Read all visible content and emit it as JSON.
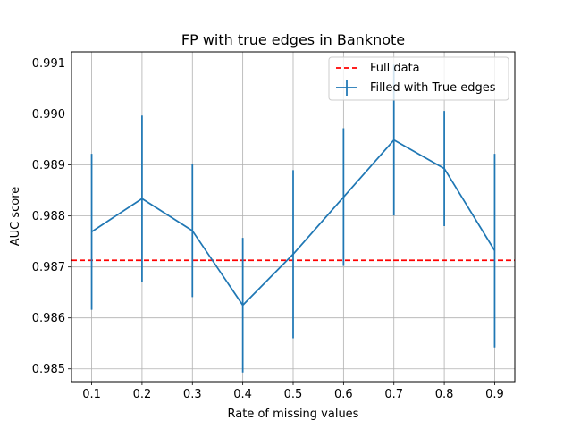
{
  "chart_data": {
    "type": "line",
    "title": "FP with true edges in Banknote",
    "xlabel": "Rate of missing values",
    "ylabel": "AUC score",
    "x": [
      0.1,
      0.2,
      0.3,
      0.4,
      0.5,
      0.6,
      0.7,
      0.8,
      0.9
    ],
    "x_tick_labels": [
      "0.1",
      "0.2",
      "0.3",
      "0.4",
      "0.5",
      "0.6",
      "0.7",
      "0.8",
      "0.9"
    ],
    "xlim": [
      0.06,
      0.94
    ],
    "ylim": [
      0.98475,
      0.99122
    ],
    "y_ticks": [
      0.985,
      0.986,
      0.987,
      0.988,
      0.989,
      0.99,
      0.991
    ],
    "y_tick_labels": [
      "0.985",
      "0.986",
      "0.987",
      "0.988",
      "0.989",
      "0.990",
      "0.991"
    ],
    "grid": true,
    "legend_position": "top-right",
    "series": [
      {
        "name": "Filled with True edges",
        "kind": "errorbar-line",
        "color": "#1f77b4",
        "values": [
          0.98769,
          0.98834,
          0.98771,
          0.98625,
          0.98725,
          0.98837,
          0.98949,
          0.98893,
          0.98732
        ],
        "errors": [
          0.00153,
          0.00163,
          0.0013,
          0.00132,
          0.00165,
          0.00135,
          0.00148,
          0.00113,
          0.0019
        ]
      },
      {
        "name": "Full data",
        "kind": "hline",
        "color": "#ff0000",
        "linestyle": "dashed",
        "value": 0.98713
      }
    ]
  }
}
